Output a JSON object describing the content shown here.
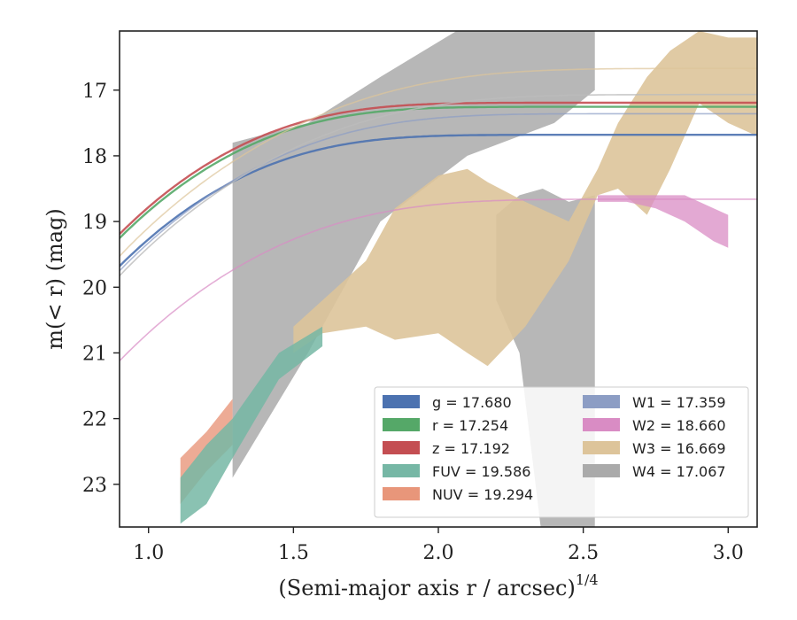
{
  "chart_data": {
    "type": "line",
    "title": "",
    "xlabel": "(Semi-major axis r / arcsec)",
    "xlabel_power": "1/4",
    "ylabel": "m(< r) (mag)",
    "xlim": [
      0.9,
      3.1
    ],
    "ylim": [
      23.65,
      16.1
    ],
    "y_inverted": true,
    "x_ticks": [
      1.0,
      1.5,
      2.0,
      2.5,
      3.0
    ],
    "x_tick_labels": [
      "1.0",
      "1.5",
      "2.0",
      "2.5",
      "3.0"
    ],
    "y_ticks": [
      17,
      18,
      19,
      20,
      21,
      22,
      23
    ],
    "y_tick_labels": [
      "17",
      "18",
      "19",
      "20",
      "21",
      "22",
      "23"
    ],
    "grid": false,
    "legend": {
      "placement": "lower-right",
      "columns": 2,
      "entries": [
        {
          "band": "g",
          "label": "g = 17.680",
          "color": "#4c72b0"
        },
        {
          "band": "r",
          "label": "r = 17.254",
          "color": "#55a868"
        },
        {
          "band": "z",
          "label": "z = 17.192",
          "color": "#c44e52"
        },
        {
          "band": "FUV",
          "label": "FUV = 19.586",
          "color": "#76b7a5"
        },
        {
          "band": "NUV",
          "label": "NUV = 19.294",
          "color": "#e8967a"
        },
        {
          "band": "W1",
          "label": "W1 = 17.359",
          "color": "#8c9dc4"
        },
        {
          "band": "W2",
          "label": "W2 = 18.660",
          "color": "#d98cc4"
        },
        {
          "band": "W3",
          "label": "W3 = 16.669",
          "color": "#ddc49a"
        },
        {
          "band": "W4",
          "label": "W4 = 17.067",
          "color": "#aaaaaa"
        }
      ]
    },
    "series": [
      {
        "name": "W4",
        "color": "#aaaaaa",
        "opacity": 0.85,
        "band_x": [
          1.29,
          1.55,
          1.8,
          2.1,
          2.4,
          2.54
        ],
        "band_upper": [
          17.8,
          17.5,
          16.8,
          16.0,
          16.0,
          16.0
        ],
        "band_lower": [
          22.9,
          21.0,
          19.0,
          18.0,
          17.5,
          17.0
        ]
      },
      {
        "name": "W4 (x > 2.2)",
        "color": "#aaaaaa",
        "opacity": 0.85,
        "band_x": [
          2.2,
          2.28,
          2.36,
          2.45,
          2.54
        ],
        "band_upper": [
          18.9,
          18.6,
          18.5,
          18.7,
          18.6
        ],
        "band_lower": [
          20.2,
          21.0,
          23.9,
          23.9,
          23.9
        ]
      },
      {
        "name": "W3",
        "color": "#ddc49a",
        "opacity": 0.9,
        "band_x": [
          1.5,
          1.6,
          1.75,
          1.85,
          2.0,
          2.1,
          2.17,
          2.3,
          2.45,
          2.55,
          2.62,
          2.72,
          2.8,
          2.9,
          3.0,
          3.1
        ],
        "band_upper": [
          20.6,
          20.2,
          19.6,
          18.8,
          18.3,
          18.2,
          18.4,
          18.7,
          19.0,
          18.2,
          17.5,
          16.8,
          16.4,
          16.1,
          16.2,
          16.2
        ],
        "band_lower": [
          21.0,
          20.7,
          20.6,
          20.8,
          20.7,
          21.0,
          21.2,
          20.6,
          19.6,
          18.6,
          18.5,
          18.9,
          18.2,
          17.2,
          17.5,
          17.7
        ]
      },
      {
        "name": "W2",
        "color": "#d98cc4",
        "opacity": 0.75,
        "band_x": [
          2.55,
          2.65,
          2.75,
          2.85,
          2.95,
          3.0
        ],
        "band_upper": [
          18.6,
          18.6,
          18.6,
          18.6,
          18.8,
          18.9
        ],
        "band_lower": [
          18.7,
          18.7,
          18.8,
          19.0,
          19.3,
          19.4
        ]
      },
      {
        "name": "NUV",
        "color": "#e8967a",
        "opacity": 0.8,
        "band_x": [
          1.11,
          1.2,
          1.29
        ],
        "band_upper": [
          22.6,
          22.2,
          21.7
        ],
        "band_lower": [
          23.3,
          22.8,
          22.4
        ]
      },
      {
        "name": "FUV",
        "color": "#76b7a5",
        "opacity": 0.85,
        "band_x": [
          1.11,
          1.2,
          1.29,
          1.45,
          1.6
        ],
        "band_upper": [
          22.9,
          22.4,
          22.0,
          21.0,
          20.6
        ],
        "band_lower": [
          23.6,
          23.3,
          22.6,
          21.4,
          20.9
        ]
      },
      {
        "name": "g",
        "color": "#4c72b0",
        "mag": 17.68,
        "width": 2.4,
        "opacity": 0.9,
        "scale": 0.95
      },
      {
        "name": "r",
        "color": "#55a868",
        "mag": 17.254,
        "width": 2.4,
        "opacity": 0.9,
        "scale": 0.95
      },
      {
        "name": "z",
        "color": "#c44e52",
        "mag": 17.192,
        "width": 2.4,
        "opacity": 0.9,
        "scale": 0.95
      },
      {
        "name": "W1",
        "color": "#8c9dc4",
        "mag": 17.359,
        "width": 1.6,
        "opacity": 0.7,
        "scale": 1.4
      },
      {
        "name": "W2",
        "color": "#d98cc4",
        "mag": 18.66,
        "width": 1.6,
        "opacity": 0.7,
        "scale": 1.5
      },
      {
        "name": "W3",
        "color": "#ddc49a",
        "mag": 16.669,
        "width": 1.6,
        "opacity": 0.7,
        "scale": 2.2
      },
      {
        "name": "W4",
        "color": "#bbbbbb",
        "mag": 17.067,
        "width": 1.6,
        "opacity": 0.8,
        "scale": 2.0
      }
    ]
  }
}
